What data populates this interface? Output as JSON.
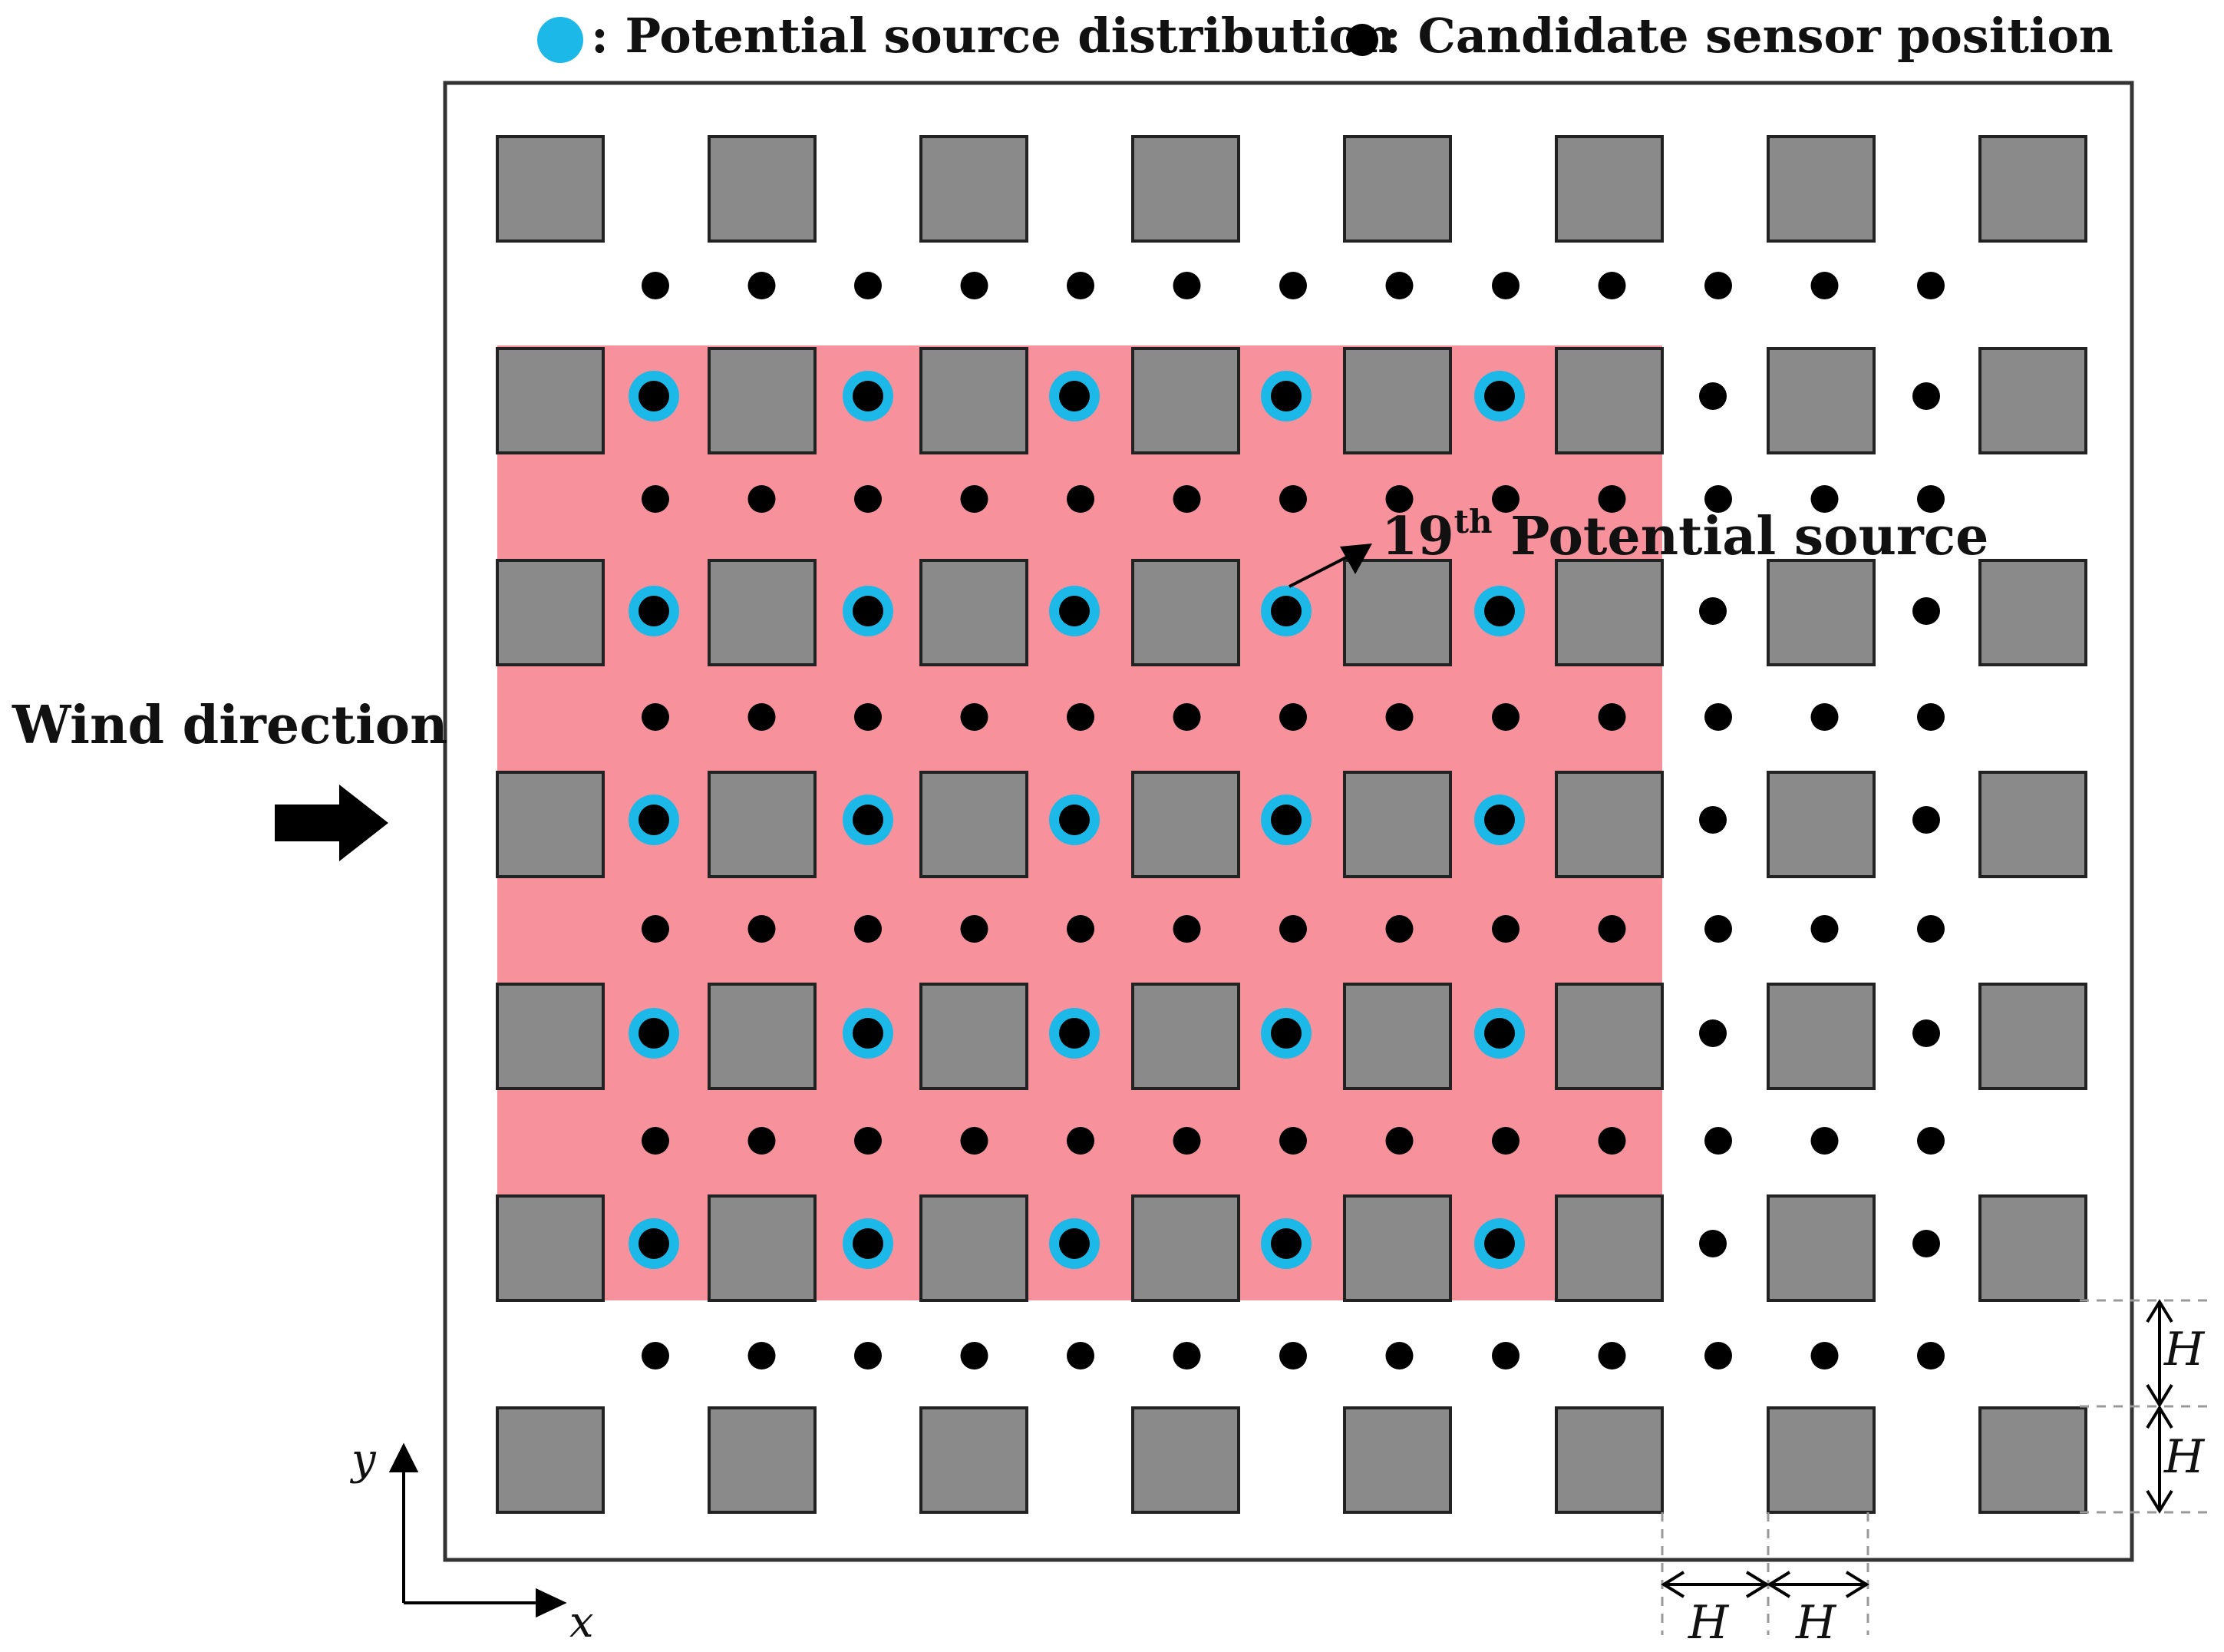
{
  "legend": {
    "source_label": ": Potential source distribution",
    "sensor_label": ": Candidate sensor position"
  },
  "annotations": {
    "source_number": "19",
    "source_superscript": "th",
    "source_text": " Potential source",
    "wind_label": "Wind direction"
  },
  "axes": {
    "x_label": "x",
    "y_label": "y"
  },
  "dimensions": {
    "h1": "H",
    "h2": "H",
    "h3": "H",
    "h4": "H"
  },
  "colors": {
    "building": "#8a8a8a",
    "source_region": "#f7929c",
    "source_ring": "#1bb8e8",
    "sensor": "#000000"
  },
  "grid": {
    "building_columns": 8,
    "building_rows": 7,
    "source_columns": 5,
    "source_rows": 5,
    "sensor_columns_full": 13,
    "sensor_gap_rows": 6,
    "highlighted_source": 19
  }
}
